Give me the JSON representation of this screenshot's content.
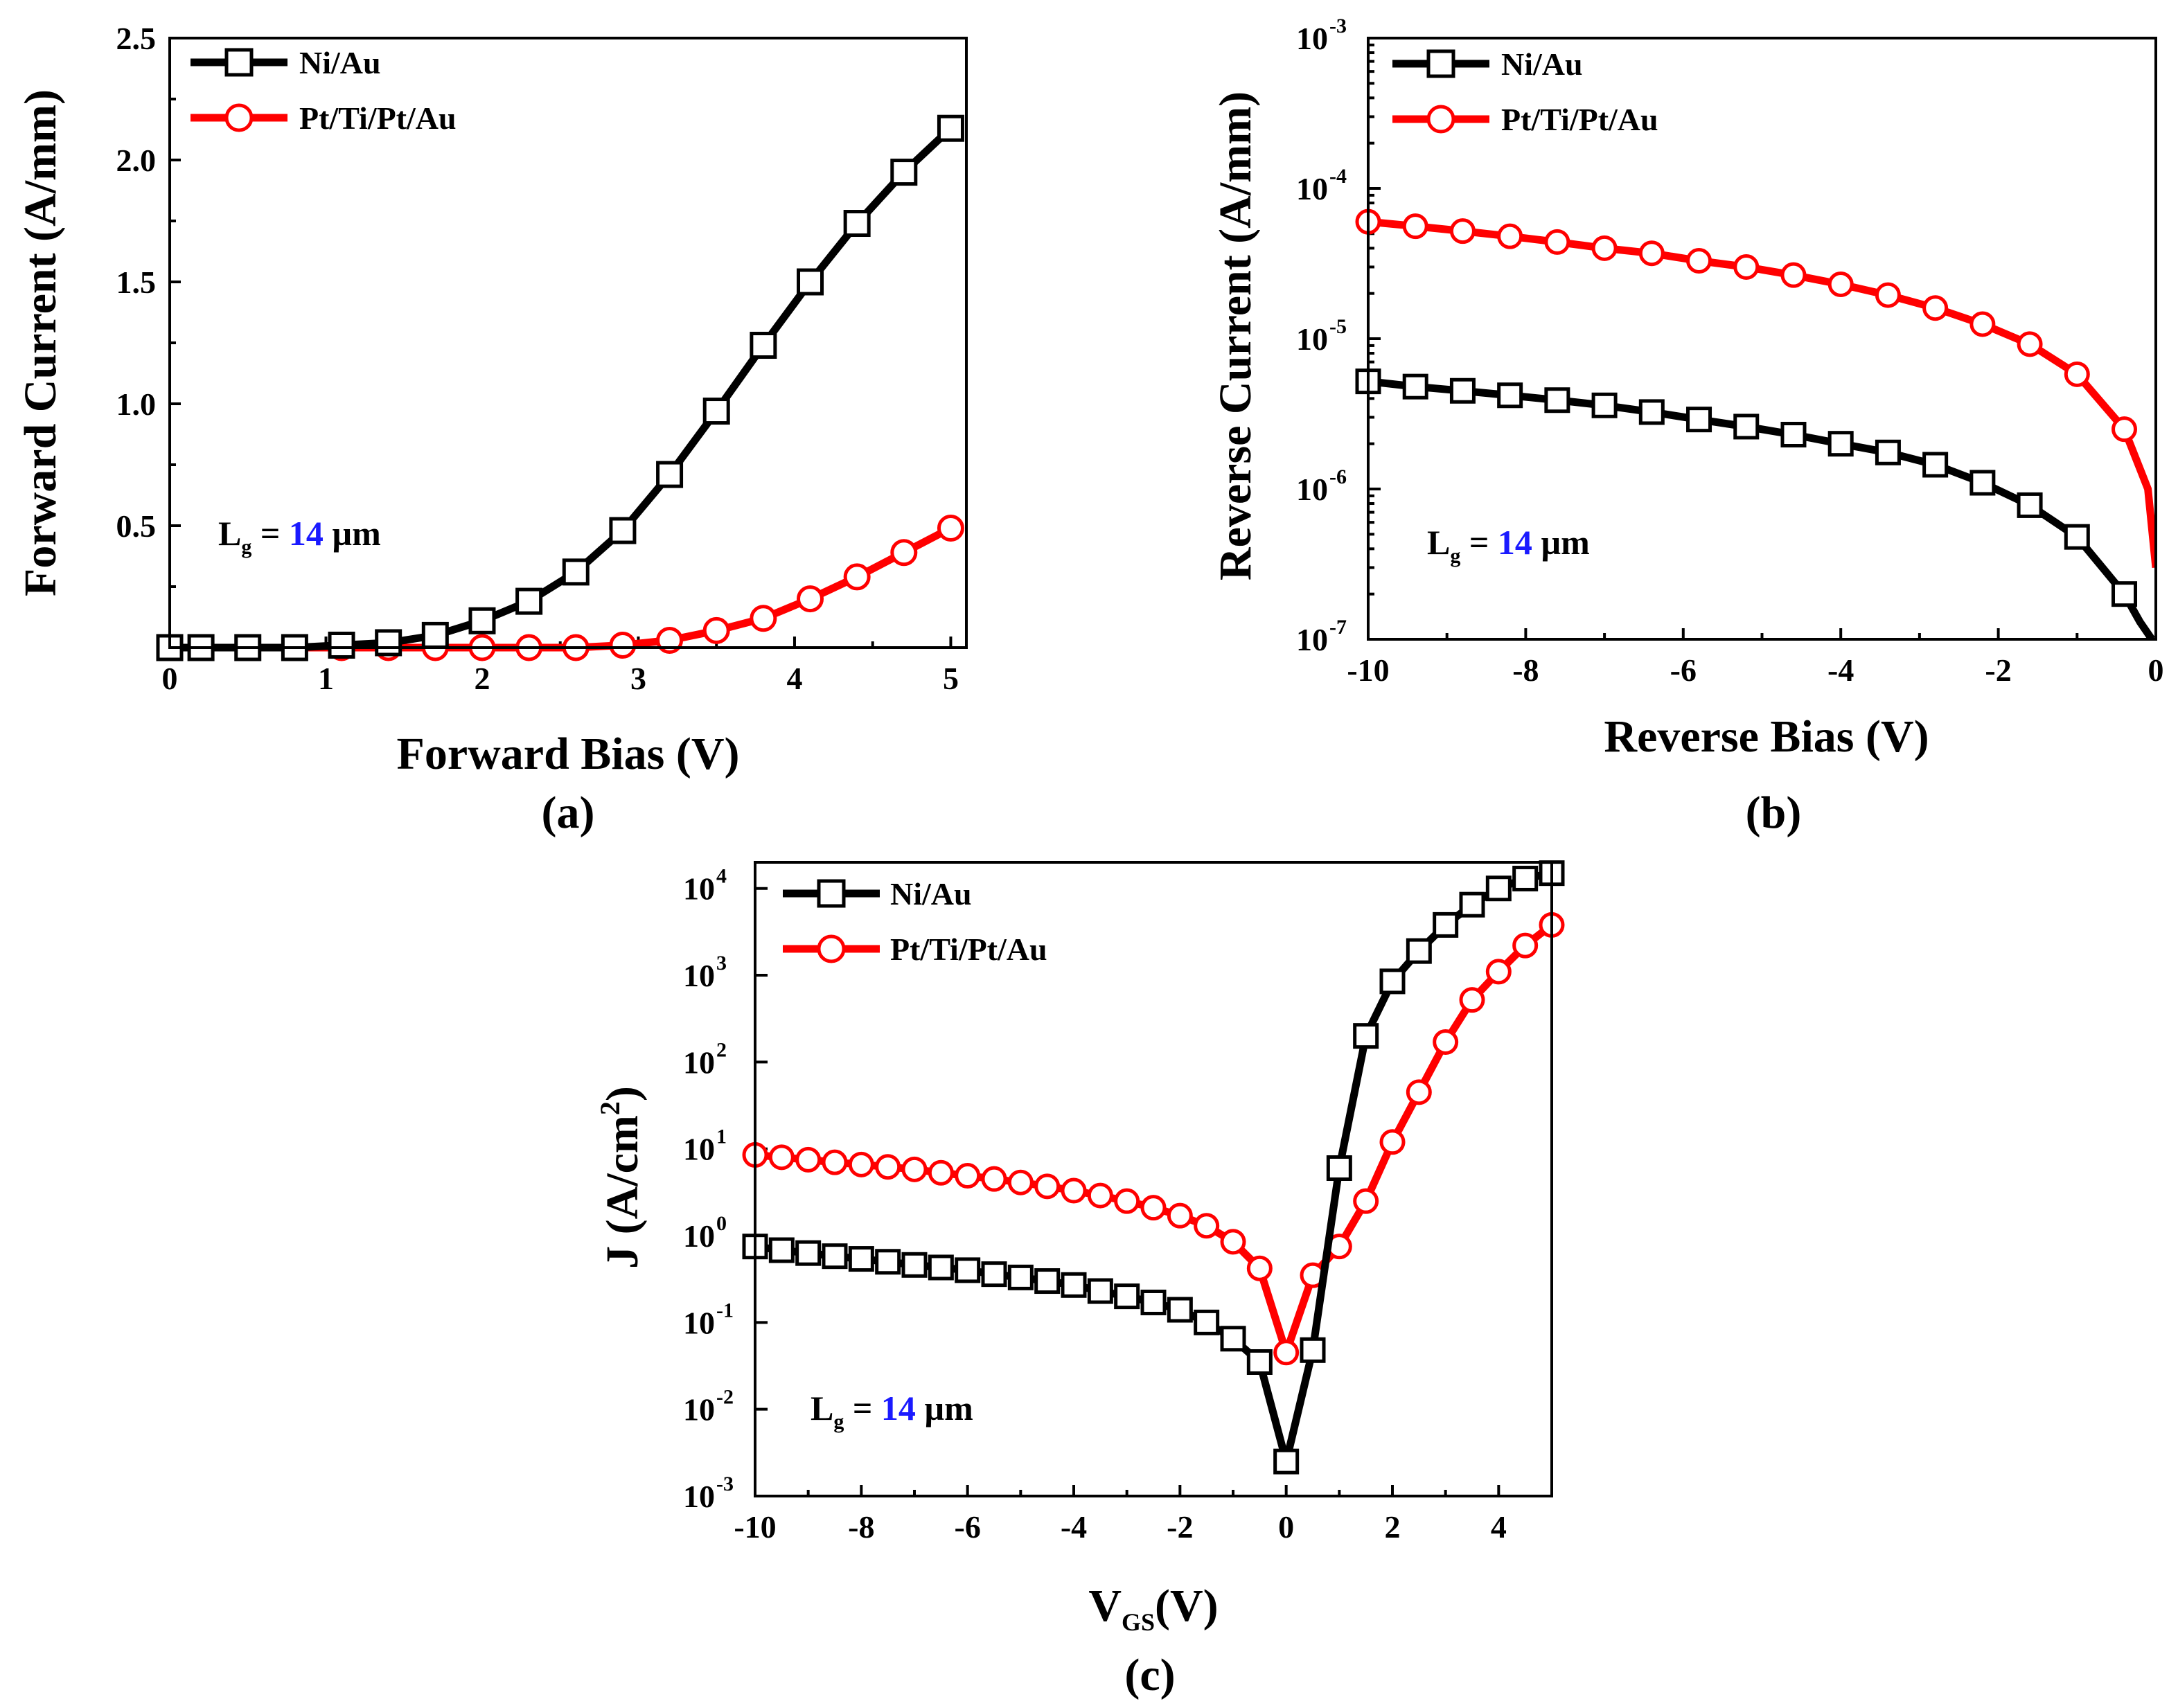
{
  "colors": {
    "ni_au": "#000000",
    "pt_ti_pt_au": "#ff0000",
    "lg_value": "#1a1aff"
  },
  "chart_data": [
    {
      "id": "a",
      "type": "line",
      "panel_label": "(a)",
      "xlabel": "Forward Bias (V)",
      "ylabel": "Forward Current (A/mm)",
      "xlim": [
        0,
        5.1
      ],
      "ylim": [
        0,
        2.5
      ],
      "x_ticks": [
        "0",
        "1",
        "2",
        "3",
        "4",
        "5"
      ],
      "y_ticks": [
        "0.5",
        "1.0",
        "1.5",
        "2.0",
        "2.5"
      ],
      "annotation": {
        "symbol": "L",
        "subscript": "g",
        "equals": " = ",
        "value": "14",
        "unit": " µm"
      },
      "series": [
        {
          "name": "Ni/Au",
          "marker": "square",
          "color": "#000000",
          "x": [
            0.0,
            0.2,
            0.5,
            0.8,
            1.1,
            1.4,
            1.7,
            2.0,
            2.3,
            2.6,
            2.9,
            3.2,
            3.5,
            3.8,
            4.1,
            4.4,
            4.7,
            5.0
          ],
          "y": [
            0.0,
            0.0,
            0.0,
            0.0,
            0.01,
            0.02,
            0.05,
            0.11,
            0.19,
            0.31,
            0.48,
            0.71,
            0.97,
            1.24,
            1.5,
            1.74,
            1.95,
            2.13
          ]
        },
        {
          "name": "Pt/Ti/Pt/Au",
          "marker": "circle",
          "color": "#ff0000",
          "x": [
            0.0,
            0.2,
            0.5,
            0.8,
            1.1,
            1.4,
            1.7,
            2.0,
            2.3,
            2.6,
            2.9,
            3.2,
            3.5,
            3.8,
            4.1,
            4.4,
            4.7,
            5.0
          ],
          "y": [
            0.0,
            0.0,
            0.0,
            0.0,
            0.0,
            0.0,
            0.0,
            0.0,
            0.0,
            0.0,
            0.01,
            0.03,
            0.07,
            0.12,
            0.2,
            0.29,
            0.39,
            0.49
          ]
        }
      ]
    },
    {
      "id": "b",
      "type": "line",
      "panel_label": "(b)",
      "xlabel": "Reverse Bias (V)",
      "ylabel": "Reverse Current (A/mm)",
      "yscale": "log",
      "xlim": [
        -10,
        0
      ],
      "ylim": [
        1e-07,
        0.001
      ],
      "x_ticks": [
        "-10",
        "-8",
        "-6",
        "-4",
        "-2",
        "0"
      ],
      "y_ticks": [
        {
          "base": "10",
          "exp": "-7"
        },
        {
          "base": "10",
          "exp": "-6"
        },
        {
          "base": "10",
          "exp": "-5"
        },
        {
          "base": "10",
          "exp": "-4"
        },
        {
          "base": "10",
          "exp": "-3"
        }
      ],
      "annotation": {
        "symbol": "L",
        "subscript": "g",
        "equals": " = ",
        "value": "14",
        "unit": " µm"
      },
      "series": [
        {
          "name": "Ni/Au",
          "marker": "square",
          "color": "#000000",
          "x": [
            -10,
            -9.4,
            -8.8,
            -8.2,
            -7.6,
            -7.0,
            -6.4,
            -5.8,
            -5.2,
            -4.6,
            -4.0,
            -3.4,
            -2.8,
            -2.2,
            -1.6,
            -1.0,
            -0.4,
            -0.2,
            -0.05
          ],
          "y": [
            5.2e-06,
            4.8e-06,
            4.5e-06,
            4.2e-06,
            3.9e-06,
            3.6e-06,
            3.25e-06,
            2.9e-06,
            2.6e-06,
            2.3e-06,
            2e-06,
            1.75e-06,
            1.45e-06,
            1.1e-06,
            7.8e-07,
            4.8e-07,
            2e-07,
            1.3e-07,
            1e-07
          ],
          "marked_points": [
            0,
            1,
            2,
            3,
            4,
            5,
            6,
            7,
            8,
            9,
            10,
            11,
            12,
            13,
            14,
            15,
            16
          ]
        },
        {
          "name": "Pt/Ti/Pt/Au",
          "marker": "circle",
          "color": "#ff0000",
          "x": [
            -10,
            -9.4,
            -8.8,
            -8.2,
            -7.6,
            -7.0,
            -6.4,
            -5.8,
            -5.2,
            -4.6,
            -4.0,
            -3.4,
            -2.8,
            -2.2,
            -1.6,
            -1.0,
            -0.4,
            -0.1,
            0.0
          ],
          "y": [
            6e-05,
            5.6e-05,
            5.2e-05,
            4.8e-05,
            4.4e-05,
            4e-05,
            3.7e-05,
            3.3e-05,
            3e-05,
            2.65e-05,
            2.3e-05,
            1.95e-05,
            1.6e-05,
            1.25e-05,
            9.2e-06,
            5.8e-06,
            2.5e-06,
            1e-06,
            3e-07
          ],
          "marked_points": [
            0,
            1,
            2,
            3,
            4,
            5,
            6,
            7,
            8,
            9,
            10,
            11,
            12,
            13,
            14,
            15,
            16
          ]
        }
      ]
    },
    {
      "id": "c",
      "type": "line",
      "panel_label": "(c)",
      "xlabel": {
        "main": "V",
        "sub": "GS",
        "rest": "(V)"
      },
      "ylabel": {
        "main": "J (A/cm",
        "sup": "2",
        "rest": ")"
      },
      "yscale": "log",
      "xlim": [
        -10,
        5
      ],
      "ylim": [
        0.001,
        20000.0
      ],
      "x_ticks": [
        "-10",
        "-8",
        "-6",
        "-4",
        "-2",
        "0",
        "2",
        "4"
      ],
      "y_ticks": [
        {
          "base": "10",
          "exp": "-3"
        },
        {
          "base": "10",
          "exp": "-2"
        },
        {
          "base": "10",
          "exp": "-1"
        },
        {
          "base": "10",
          "exp": "0"
        },
        {
          "base": "10",
          "exp": "1"
        },
        {
          "base": "10",
          "exp": "2"
        },
        {
          "base": "10",
          "exp": "3"
        },
        {
          "base": "10",
          "exp": "4"
        }
      ],
      "annotation": {
        "symbol": "L",
        "subscript": "g",
        "equals": " = ",
        "value": "14",
        "unit": " µm"
      },
      "series": [
        {
          "name": "Ni/Au",
          "marker": "square",
          "color": "#000000",
          "x": [
            -10,
            -9.5,
            -9.0,
            -8.5,
            -8.0,
            -7.5,
            -7.0,
            -6.5,
            -6.0,
            -5.5,
            -5.0,
            -4.5,
            -4.0,
            -3.5,
            -3.0,
            -2.5,
            -2.0,
            -1.5,
            -1.0,
            -0.5,
            0.0,
            0.5,
            1.0,
            1.5,
            2.0,
            2.5,
            3.0,
            3.5,
            4.0,
            4.5,
            5.0
          ],
          "y": [
            0.75,
            0.68,
            0.63,
            0.58,
            0.54,
            0.5,
            0.46,
            0.43,
            0.4,
            0.36,
            0.33,
            0.3,
            0.27,
            0.23,
            0.2,
            0.17,
            0.14,
            0.1,
            0.065,
            0.035,
            0.0025,
            0.048,
            6.0,
            200,
            850,
            1900,
            3800,
            6500,
            10000,
            13000,
            15000
          ]
        },
        {
          "name": "Pt/Ti/Pt/Au",
          "marker": "circle",
          "color": "#ff0000",
          "x": [
            -10,
            -9.5,
            -9.0,
            -8.5,
            -8.0,
            -7.5,
            -7.0,
            -6.5,
            -6.0,
            -5.5,
            -5.0,
            -4.5,
            -4.0,
            -3.5,
            -3.0,
            -2.5,
            -2.0,
            -1.5,
            -1.0,
            -0.5,
            0.0,
            0.5,
            1.0,
            1.5,
            2.0,
            2.5,
            3.0,
            3.5,
            4.0,
            4.5,
            5.0
          ],
          "y": [
            8.5,
            8.0,
            7.5,
            7.0,
            6.6,
            6.2,
            5.8,
            5.3,
            4.9,
            4.5,
            4.1,
            3.7,
            3.3,
            2.9,
            2.5,
            2.1,
            1.7,
            1.3,
            0.85,
            0.42,
            0.045,
            0.35,
            0.75,
            2.5,
            12,
            45,
            170,
            520,
            1100,
            2200,
            3800
          ]
        }
      ]
    }
  ]
}
